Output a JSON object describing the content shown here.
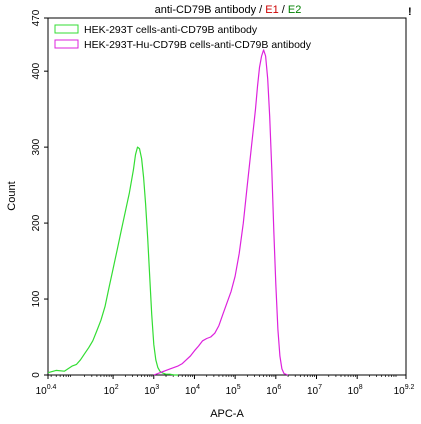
{
  "chart_data": {
    "type": "line",
    "title": {
      "main": "anti-CD79B antibody",
      "sep1": " / ",
      "e1": "E1",
      "sep2": " / ",
      "e2": "E2"
    },
    "title_colors": {
      "main": "#000000",
      "e1": "#cc0000",
      "e2": "#008000"
    },
    "corner_mark": "!",
    "xlabel": "APC-A",
    "ylabel": "Count",
    "xscale": "log",
    "xlim": [
      0.4,
      9.2
    ],
    "ylim": [
      0,
      470
    ],
    "x_ticks": [
      {
        "base": "10",
        "exp": "0.4",
        "value": 0.4
      },
      {
        "base": "10",
        "exp": "2",
        "value": 2
      },
      {
        "base": "10",
        "exp": "3",
        "value": 3
      },
      {
        "base": "10",
        "exp": "4",
        "value": 4
      },
      {
        "base": "10",
        "exp": "5",
        "value": 5
      },
      {
        "base": "10",
        "exp": "6",
        "value": 6
      },
      {
        "base": "10",
        "exp": "7",
        "value": 7
      },
      {
        "base": "10",
        "exp": "8",
        "value": 8
      },
      {
        "base": "10",
        "exp": "9.2",
        "value": 9.2
      }
    ],
    "y_ticks": [
      {
        "label": "0",
        "value": 0
      },
      {
        "label": "100",
        "value": 100
      },
      {
        "label": "200",
        "value": 200
      },
      {
        "label": "300",
        "value": 300
      },
      {
        "label": "400",
        "value": 400
      },
      {
        "label": "470",
        "value": 470
      }
    ],
    "legend_position": "top-left",
    "series": [
      {
        "name": "HEK-293T cells-anti-CD79B antibody",
        "color": "#33dd33",
        "x": [
          0.4,
          0.6,
          0.8,
          1.0,
          1.1,
          1.2,
          1.3,
          1.4,
          1.5,
          1.6,
          1.7,
          1.8,
          1.9,
          2.0,
          2.1,
          2.2,
          2.3,
          2.4,
          2.5,
          2.55,
          2.6,
          2.65,
          2.7,
          2.75,
          2.8,
          2.85,
          2.9,
          2.95,
          3.0,
          3.05,
          3.1,
          3.15,
          3.2,
          3.25,
          3.3,
          3.4,
          3.5,
          3.6
        ],
        "y": [
          3,
          6,
          5,
          12,
          14,
          20,
          28,
          36,
          45,
          58,
          72,
          90,
          115,
          140,
          165,
          190,
          215,
          240,
          270,
          290,
          300,
          298,
          285,
          260,
          225,
          180,
          130,
          80,
          40,
          20,
          10,
          5,
          3,
          2,
          1,
          1,
          0,
          0
        ]
      },
      {
        "name": "HEK-293T-Hu-CD79B cells-anti-CD79B antibody",
        "color": "#dd22dd",
        "x": [
          3.0,
          3.1,
          3.2,
          3.3,
          3.4,
          3.5,
          3.6,
          3.7,
          3.8,
          3.9,
          4.0,
          4.1,
          4.2,
          4.3,
          4.4,
          4.5,
          4.6,
          4.7,
          4.8,
          4.9,
          5.0,
          5.1,
          5.2,
          5.3,
          5.4,
          5.5,
          5.55,
          5.6,
          5.65,
          5.7,
          5.75,
          5.8,
          5.85,
          5.9,
          5.95,
          6.0,
          6.05,
          6.1,
          6.15,
          6.2,
          6.3
        ],
        "y": [
          0,
          2,
          4,
          6,
          8,
          10,
          12,
          15,
          20,
          25,
          32,
          38,
          45,
          48,
          50,
          55,
          65,
          80,
          95,
          110,
          130,
          160,
          200,
          250,
          300,
          350,
          380,
          405,
          420,
          428,
          420,
          390,
          340,
          270,
          190,
          120,
          60,
          25,
          8,
          2,
          0
        ]
      }
    ]
  }
}
